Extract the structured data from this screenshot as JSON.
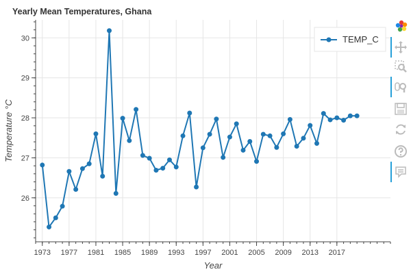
{
  "chart_data": {
    "type": "line",
    "title": "Yearly Mean Temperatures, Ghana",
    "xlabel": "Year",
    "ylabel": "Temperature °C",
    "xlim": [
      1972,
      2025
    ],
    "ylim": [
      24.9,
      30.45
    ],
    "xticks": [
      1973,
      1977,
      1981,
      1985,
      1989,
      1993,
      1997,
      2001,
      2005,
      2009,
      2013,
      2017
    ],
    "yticks": [
      26,
      27,
      28,
      29,
      30
    ],
    "grid": true,
    "legend_position": "top-right",
    "color": "#1f77b4",
    "series": [
      {
        "name": "TEMP_C",
        "x": [
          1973,
          1974,
          1975,
          1976,
          1977,
          1978,
          1979,
          1980,
          1981,
          1982,
          1983,
          1984,
          1985,
          1986,
          1987,
          1988,
          1989,
          1990,
          1991,
          1992,
          1993,
          1994,
          1995,
          1996,
          1997,
          1998,
          1999,
          2000,
          2001,
          2002,
          2003,
          2004,
          2005,
          2006,
          2007,
          2008,
          2009,
          2010,
          2011,
          2012,
          2013,
          2014,
          2015,
          2016,
          2017,
          2018,
          2019,
          2020
        ],
        "y": [
          26.82,
          25.27,
          25.5,
          25.79,
          26.66,
          26.21,
          26.73,
          26.85,
          27.6,
          26.54,
          30.18,
          26.11,
          27.99,
          27.43,
          28.21,
          27.06,
          26.99,
          26.69,
          26.74,
          26.95,
          26.77,
          27.55,
          28.12,
          26.27,
          27.25,
          27.59,
          27.97,
          27.01,
          27.52,
          27.85,
          27.19,
          27.41,
          26.91,
          27.59,
          27.55,
          27.26,
          27.6,
          27.96,
          27.29,
          27.49,
          27.81,
          27.36,
          28.11,
          27.95,
          28.0,
          27.94,
          28.05,
          28.05
        ]
      }
    ]
  },
  "toolbar": {
    "tools": [
      "bokeh-logo-icon",
      "pan-icon",
      "box-zoom-icon",
      "wheel-zoom-icon",
      "save-icon",
      "reset-icon",
      "help-icon",
      "hover-icon"
    ]
  }
}
